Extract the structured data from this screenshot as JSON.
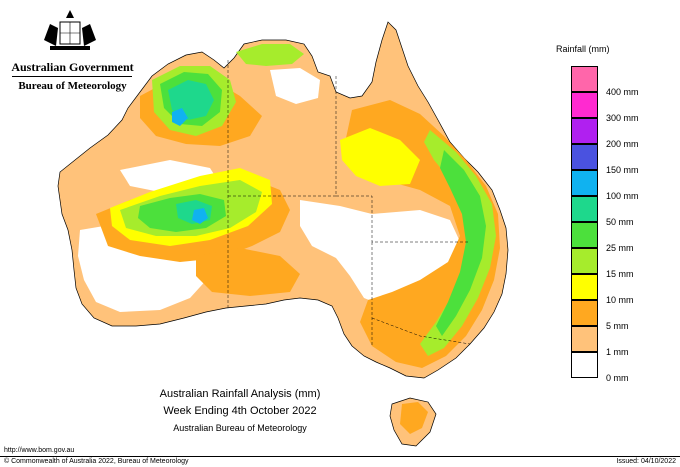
{
  "header": {
    "government": "Australian Government",
    "agency": "Bureau of Meteorology"
  },
  "legend": {
    "title": "Rainfall (mm)",
    "items": [
      {
        "label": "",
        "color": "#ff66aa"
      },
      {
        "label": "400 mm",
        "color": "#ff2ad0"
      },
      {
        "label": "300 mm",
        "color": "#b020f0"
      },
      {
        "label": "200 mm",
        "color": "#4a52e0"
      },
      {
        "label": "150 mm",
        "color": "#10b2f0"
      },
      {
        "label": "100 mm",
        "color": "#1ed88c"
      },
      {
        "label": "50 mm",
        "color": "#4ce03c"
      },
      {
        "label": "25 mm",
        "color": "#a6ec2c"
      },
      {
        "label": "15 mm",
        "color": "#ffff00"
      },
      {
        "label": "10 mm",
        "color": "#ffa820"
      },
      {
        "label": "5 mm",
        "color": "#ffc27a"
      },
      {
        "label": "1 mm",
        "color": "#ffffff"
      },
      {
        "label": "0 mm",
        "color": ""
      }
    ]
  },
  "map": {
    "title_line1": "Australian Rainfall Analysis (mm)",
    "title_line2": "Week Ending 4th October 2022",
    "organisation": "Australian Bureau of Meteorology"
  },
  "footer": {
    "url": "http://www.bom.gov.au",
    "copyright": "© Commonwealth of Australia 2022, Bureau of Meteorology",
    "issued": "Issued: 04/10/2022"
  },
  "colors": {
    "r1": "#ffc27a",
    "r5": "#ffa820",
    "r10": "#ffff00",
    "r15": "#a6ec2c",
    "r25": "#4ce03c",
    "r50": "#1ed88c",
    "r100": "#10b2f0"
  }
}
